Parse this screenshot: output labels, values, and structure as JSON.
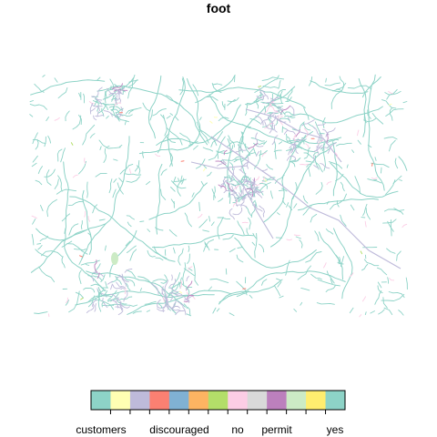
{
  "title": "foot",
  "legend": {
    "labels": [
      "customers",
      "discouraged",
      "no",
      "permit",
      "yes"
    ],
    "colors": [
      "#8DD3C7",
      "#FFFFB3",
      "#BEBADA",
      "#FB8072",
      "#80B1D3",
      "#FDB462",
      "#B3DE69",
      "#FCCDE5",
      "#D9D9D9",
      "#BC80BD",
      "#CCEBC5",
      "#FFED6F",
      "#8DD3C7"
    ]
  },
  "colors": {
    "yes": "#8DD3C7",
    "designated": "#BEBADA",
    "no": "#FCCDE5",
    "permissive": "#BC80BD",
    "private": "#FB8072",
    "customers": "#FFFFB3",
    "other": "#B3DE69"
  }
}
